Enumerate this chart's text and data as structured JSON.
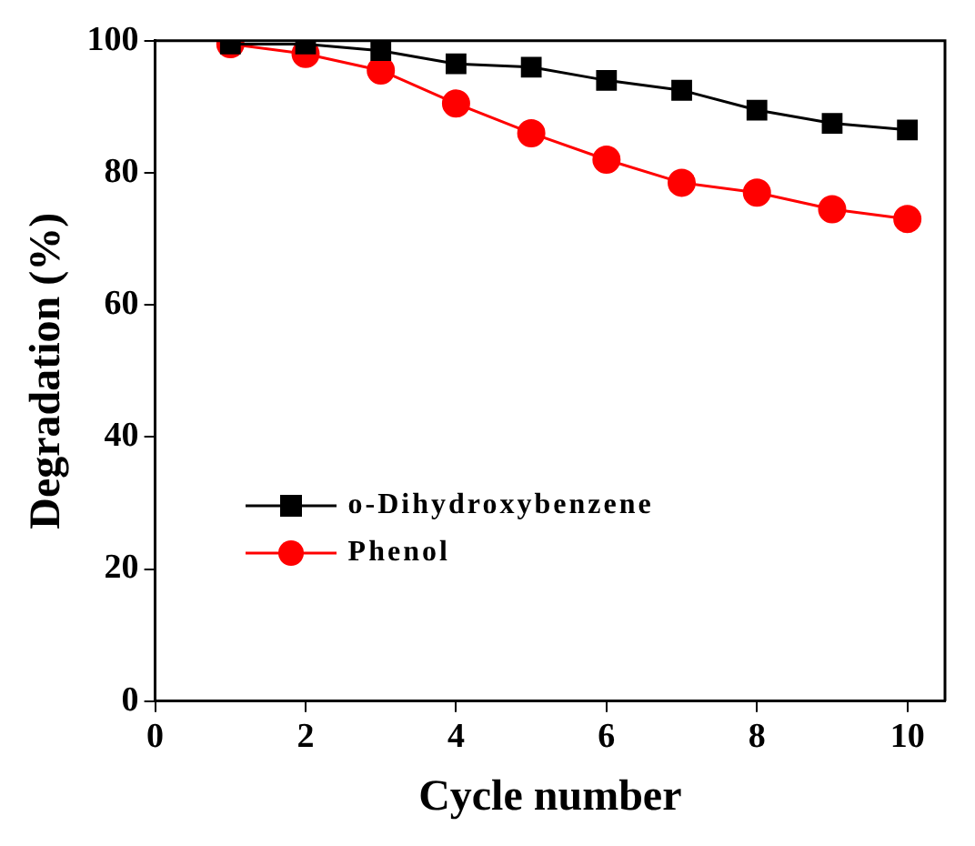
{
  "chart_data": {
    "type": "line",
    "xlabel": "Cycle number",
    "ylabel": "Degradation (%)",
    "x": [
      1,
      2,
      3,
      4,
      5,
      6,
      7,
      8,
      9,
      10
    ],
    "series": [
      {
        "name": "o-Dihydroxybenzene",
        "color": "#000000",
        "marker": "square",
        "values": [
          99.5,
          99.5,
          98.5,
          96.5,
          96,
          94,
          92.5,
          89.5,
          87.5,
          86.5
        ]
      },
      {
        "name": "Phenol",
        "color": "#ff0000",
        "marker": "circle",
        "values": [
          99.5,
          98,
          95.5,
          90.5,
          86,
          82,
          78.5,
          77,
          74.5,
          73
        ]
      }
    ],
    "xlim": [
      0,
      10.5
    ],
    "xticks": [
      0,
      2,
      4,
      6,
      8,
      10
    ],
    "ylim": [
      0,
      100
    ],
    "yticks": [
      0,
      20,
      40,
      60,
      80,
      100
    ],
    "grid": false,
    "legend": "bottom left",
    "line_style": "solid"
  }
}
